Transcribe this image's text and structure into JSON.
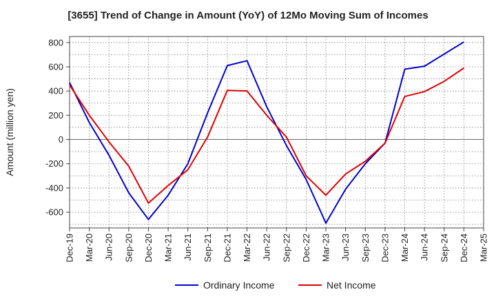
{
  "chart_data": {
    "type": "line",
    "title": "[3655]  Trend of Change in Amount (YoY) of 12Mo Moving Sum of Incomes",
    "xlabel": "",
    "ylabel": "Amount (million yen)",
    "ylim": [
      -730,
      850
    ],
    "yticks": [
      800,
      600,
      400,
      200,
      0,
      -200,
      -400,
      -600
    ],
    "x": [
      "Dec-19",
      "Mar-20",
      "Jun-20",
      "Sep-20",
      "Dec-20",
      "Mar-21",
      "Jun-21",
      "Sep-21",
      "Dec-21",
      "Mar-22",
      "Jun-22",
      "Sep-22",
      "Dec-22",
      "Mar-23",
      "Jun-23",
      "Sep-23",
      "Dec-23",
      "Mar-24",
      "Jun-24",
      "Sep-24",
      "Dec-24",
      "Mar-25"
    ],
    "grid": true,
    "legend_position": "bottom",
    "series": [
      {
        "name": "Ordinary Income",
        "color": "#0000cc",
        "values": [
          470,
          140,
          -130,
          -440,
          -660,
          -460,
          -200,
          220,
          610,
          650,
          270,
          -50,
          -330,
          -690,
          -410,
          -200,
          -30,
          580,
          605,
          705,
          805,
          null
        ]
      },
      {
        "name": "Net Income",
        "color": "#dd0000",
        "values": [
          450,
          200,
          -20,
          -220,
          -525,
          -380,
          -250,
          20,
          405,
          400,
          200,
          20,
          -300,
          -460,
          -285,
          -180,
          -30,
          355,
          395,
          480,
          590,
          null
        ]
      }
    ]
  }
}
